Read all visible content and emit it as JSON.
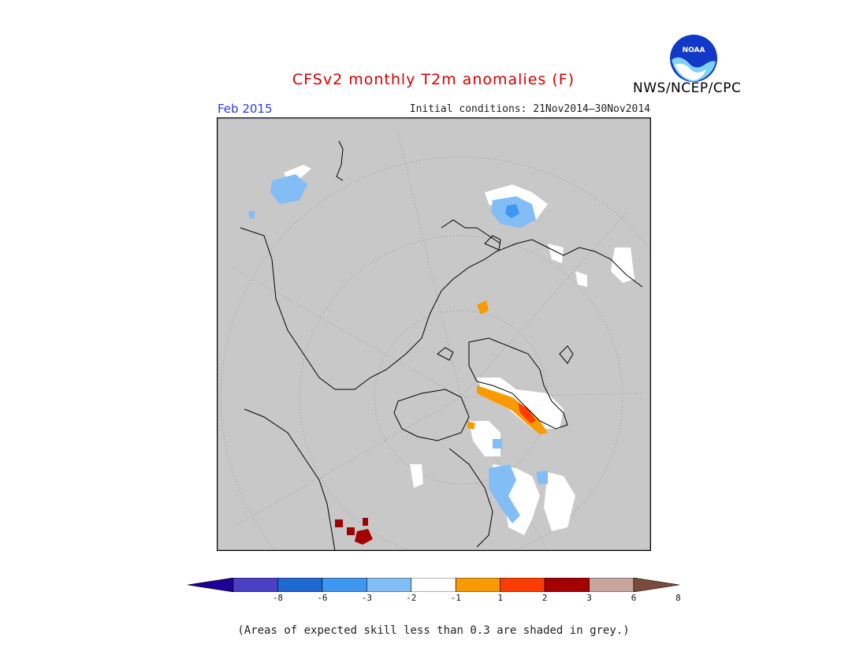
{
  "title": "CFSv2 monthly T2m anomalies (F)",
  "period": "Feb 2015",
  "initial_conditions": "Initial conditions: 21Nov2014—30Nov2014",
  "agency": "NWS/NCEP/CPC",
  "logo_text": "NOAA",
  "note": "(Areas of expected skill less than 0.3 are shaded in grey.)",
  "colors": {
    "title": "#d40000",
    "period": "#2a3cdc",
    "no_skill_grey": "#c8c8c8",
    "land_outline": "#000000"
  },
  "legend": {
    "ticks": [
      "-8",
      "-6",
      "-3",
      "-2",
      "-1",
      "1",
      "2",
      "3",
      "6",
      "8"
    ],
    "bins": [
      {
        "label": "< -8",
        "color": "#1e0096"
      },
      {
        "label": "-8 to -6",
        "color": "#4b3fc8"
      },
      {
        "label": "-6 to -3",
        "color": "#1f69d4"
      },
      {
        "label": "-3 to -2",
        "color": "#3e97f0"
      },
      {
        "label": "-2 to -1",
        "color": "#82bdf6"
      },
      {
        "label": "-1 to 1",
        "color": "#ffffff"
      },
      {
        "label": "1 to 2",
        "color": "#f99a00"
      },
      {
        "label": "2 to 3",
        "color": "#ff3c00"
      },
      {
        "label": "3 to 6",
        "color": "#a50000"
      },
      {
        "label": "6 to 8",
        "color": "#c8a59a"
      },
      {
        "label": "> 8",
        "color": "#7a4b3c"
      }
    ]
  }
}
